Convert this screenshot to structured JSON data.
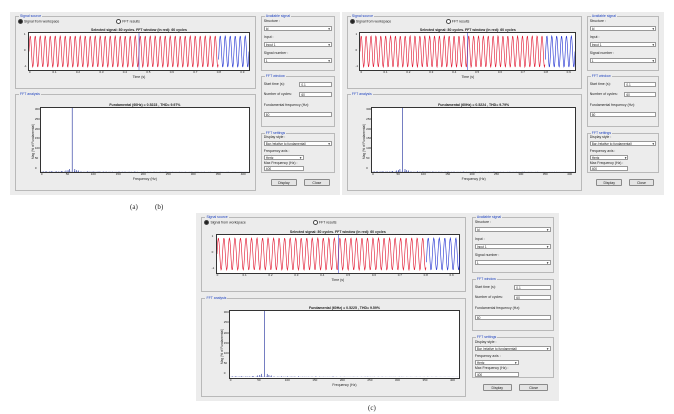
{
  "panels": [
    {
      "id": "a",
      "signal_group": "Signal source",
      "signal_radio_1": "Signal from workspace",
      "signal_radio_2": "FFT results",
      "signal_plot_title": "Selected signal: 80 cycles. FFT window (in red): 60 cycles",
      "signal_xlabel": "Time (s)",
      "signal_xticks": [
        "0",
        "0.1",
        "0.2",
        "0.3",
        "0.4",
        "0.5",
        "0.6",
        "0.7",
        "0.8",
        "0.9"
      ],
      "signal_yticks": [
        "1",
        "0",
        "-1"
      ],
      "fft_group": "FFT analysis",
      "fft_plot_title": "Fundamental (60Hz) = 0.5223 , THD= 9.97%",
      "fft_xlabel": "Frequency (Hz)",
      "fft_ylabel": "Mag (% of Fundamental)",
      "fft_xticks": [
        "0",
        "50",
        "100",
        "150",
        "200",
        "250",
        "300",
        "350",
        "400"
      ],
      "fft_yticks": [
        "300",
        "250",
        "200",
        "150",
        "100",
        "50",
        "0"
      ],
      "side_group_1": "Available signal",
      "side_field_labels": [
        "Structure :",
        "Input :",
        "Signal number :"
      ],
      "side_field_values": [
        "Id",
        "Input 1",
        "1"
      ],
      "side_group_2": "FFT window",
      "start_time_label": "Start time (s):",
      "start_time_value": "0.1",
      "cycles_label": "Number of cycles:",
      "cycles_value": "60",
      "fund_freq_label": "Fundamental frequency (Hz):",
      "fund_freq_value": "60",
      "side_group_3": "FFT settings",
      "display_style_label": "Display style :",
      "display_style_value": "Bar (relative to fundamental)",
      "freq_axis_label": "Frequency axis :",
      "freq_axis_value": "Hertz",
      "max_freq_label": "Max Frequency (Hz) :",
      "max_freq_value": "400",
      "display_button": "Display",
      "close_button": "Close"
    },
    {
      "id": "b",
      "signal_group": "Signal source",
      "signal_radio_1": "Signal from workspace",
      "signal_radio_2": "FFT results",
      "signal_plot_title": "Selected signal: 80 cycles. FFT window (in red): 60 cycles",
      "signal_xlabel": "Time (s)",
      "signal_xticks": [
        "0",
        "0.1",
        "0.2",
        "0.3",
        "0.4",
        "0.5",
        "0.6",
        "0.7",
        "0.8",
        "0.9"
      ],
      "signal_yticks": [
        "1",
        "0",
        "-1"
      ],
      "fft_group": "FFT analysis",
      "fft_plot_title": "Fundamental (60Hz) = 0.5224 , THD= 9.79%",
      "fft_xlabel": "Frequency (Hz)",
      "fft_ylabel": "Mag (% of Fundamental)",
      "fft_xticks": [
        "0",
        "50",
        "100",
        "150",
        "200",
        "250",
        "300",
        "350",
        "400"
      ],
      "fft_yticks": [
        "300",
        "250",
        "200",
        "150",
        "100",
        "50",
        "0"
      ],
      "side_group_1": "Available signal",
      "side_field_labels": [
        "Structure :",
        "Input :",
        "Signal number :"
      ],
      "side_field_values": [
        "Id",
        "Input 1",
        "1"
      ],
      "side_group_2": "FFT window",
      "start_time_label": "Start time (s):",
      "start_time_value": "0.1",
      "cycles_label": "Number of cycles:",
      "cycles_value": "60",
      "fund_freq_label": "Fundamental frequency (Hz):",
      "fund_freq_value": "60",
      "side_group_3": "FFT settings",
      "display_style_label": "Display style :",
      "display_style_value": "Bar (relative to fundamental)",
      "freq_axis_label": "Frequency axis :",
      "freq_axis_value": "Hertz",
      "max_freq_label": "Max Frequency (Hz) :",
      "max_freq_value": "400",
      "display_button": "Display",
      "close_button": "Close"
    },
    {
      "id": "c",
      "signal_group": "Signal source",
      "signal_radio_1": "Signal from workspace",
      "signal_radio_2": "FFT results",
      "signal_plot_title": "Selected signal: 80 cycles. FFT window (in red): 60 cycles",
      "signal_xlabel": "Time (s)",
      "signal_xticks": [
        "0",
        "0.1",
        "0.2",
        "0.3",
        "0.4",
        "0.5",
        "0.6",
        "0.7",
        "0.8",
        "0.9"
      ],
      "signal_yticks": [
        "1",
        "0",
        "-1"
      ],
      "fft_group": "FFT analysis",
      "fft_plot_title": "Fundamental (60Hz) = 0.5225 , THD= 9.59%",
      "fft_xlabel": "Frequency (Hz)",
      "fft_ylabel": "Mag (% of Fundamental)",
      "fft_xticks": [
        "0",
        "50",
        "100",
        "150",
        "200",
        "250",
        "300",
        "350",
        "400"
      ],
      "fft_yticks": [
        "300",
        "250",
        "200",
        "150",
        "100",
        "50",
        "0"
      ],
      "side_group_1": "Available signal",
      "side_field_labels": [
        "Structure :",
        "Input :",
        "Signal number :"
      ],
      "side_field_values": [
        "Id",
        "Input 1",
        "1"
      ],
      "side_group_2": "FFT window",
      "start_time_label": "Start time (s):",
      "start_time_value": "0.1",
      "cycles_label": "Number of cycles:",
      "cycles_value": "60",
      "fund_freq_label": "Fundamental frequency (Hz):",
      "fund_freq_value": "60",
      "side_group_3": "FFT settings",
      "display_style_label": "Display style :",
      "display_style_value": "Bar (relative to fundamental)",
      "freq_axis_label": "Frequency axis :",
      "freq_axis_value": "Hertz",
      "max_freq_label": "Max Frequency (Hz) :",
      "max_freq_value": "400",
      "display_button": "Display",
      "close_button": "Close"
    }
  ],
  "captions": {
    "a": "(a)",
    "b": "(b)",
    "c": "(c)"
  },
  "colors": {
    "signal_window": "#e0102a",
    "signal_outside": "#1f2fd0",
    "spectrum": "#1a2a9a",
    "group_title": "#1a3fbf"
  }
}
